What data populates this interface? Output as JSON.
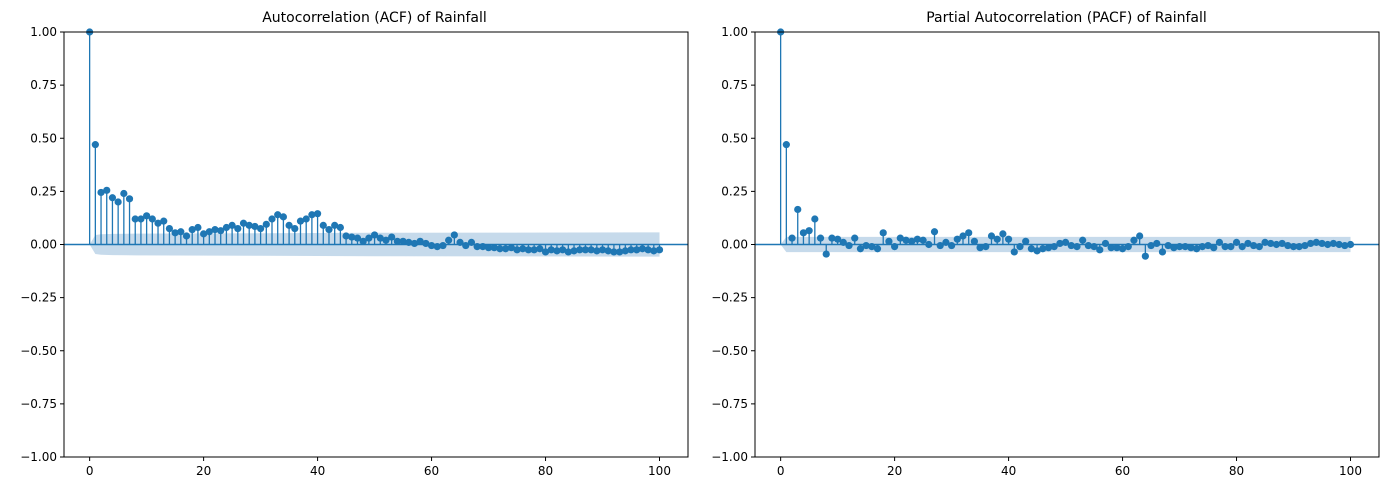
{
  "chart_data": [
    {
      "type": "stem",
      "title": "Autocorrelation (ACF) of Rainfall",
      "xlabel": "",
      "ylabel": "",
      "xlim": [
        -4.5,
        105
      ],
      "ylim": [
        -1.0,
        1.0
      ],
      "x_ticks": [
        0,
        20,
        40,
        60,
        80,
        100
      ],
      "x_tick_labels": [
        "0",
        "20",
        "40",
        "60",
        "80",
        "100"
      ],
      "y_ticks": [
        -1.0,
        -0.75,
        -0.5,
        -0.25,
        0.0,
        0.25,
        0.5,
        0.75,
        1.0
      ],
      "y_tick_labels": [
        "−1.00",
        "−0.75",
        "−0.50",
        "−0.25",
        "0.00",
        "0.25",
        "0.50",
        "0.75",
        "1.00"
      ],
      "grid": false,
      "colors": {
        "marker": "#1f77b4",
        "band": "#aecbe3",
        "zero_line": "#1f77b4"
      },
      "confidence_band": [
        [
          0,
          0
        ],
        [
          1,
          0.045
        ],
        [
          2,
          0.048
        ],
        [
          4,
          0.05
        ],
        [
          8,
          0.051
        ],
        [
          15,
          0.052
        ],
        [
          30,
          0.053
        ],
        [
          50,
          0.055
        ],
        [
          75,
          0.056
        ],
        [
          100,
          0.057
        ]
      ],
      "series": [
        {
          "x": [
            0,
            1,
            2,
            3,
            4,
            5,
            6,
            7,
            8,
            9,
            10,
            11,
            12,
            13,
            14,
            15,
            16,
            17,
            18,
            19,
            20,
            21,
            22,
            23,
            24,
            25,
            26,
            27,
            28,
            29,
            30,
            31,
            32,
            33,
            34,
            35,
            36,
            37,
            38,
            39,
            40,
            41,
            42,
            43,
            44,
            45,
            46,
            47,
            48,
            49,
            50,
            51,
            52,
            53,
            54,
            55,
            56,
            57,
            58,
            59,
            60,
            61,
            62,
            63,
            64,
            65,
            66,
            67,
            68,
            69,
            70,
            71,
            72,
            73,
            74,
            75,
            76,
            77,
            78,
            79,
            80,
            81,
            82,
            83,
            84,
            85,
            86,
            87,
            88,
            89,
            90,
            91,
            92,
            93,
            94,
            95,
            96,
            97,
            98,
            99,
            100
          ],
          "values": [
            1.0,
            0.47,
            0.245,
            0.255,
            0.22,
            0.2,
            0.24,
            0.215,
            0.12,
            0.12,
            0.135,
            0.12,
            0.1,
            0.11,
            0.075,
            0.055,
            0.06,
            0.04,
            0.07,
            0.08,
            0.05,
            0.06,
            0.07,
            0.065,
            0.08,
            0.09,
            0.075,
            0.1,
            0.09,
            0.085,
            0.075,
            0.095,
            0.12,
            0.14,
            0.13,
            0.09,
            0.075,
            0.11,
            0.12,
            0.14,
            0.145,
            0.09,
            0.07,
            0.09,
            0.08,
            0.04,
            0.035,
            0.03,
            0.015,
            0.03,
            0.045,
            0.03,
            0.02,
            0.035,
            0.015,
            0.015,
            0.01,
            0.005,
            0.015,
            0.005,
            -0.005,
            -0.01,
            -0.005,
            0.02,
            0.045,
            0.01,
            -0.005,
            0.01,
            -0.01,
            -0.01,
            -0.015,
            -0.015,
            -0.02,
            -0.02,
            -0.015,
            -0.025,
            -0.02,
            -0.025,
            -0.025,
            -0.02,
            -0.035,
            -0.025,
            -0.03,
            -0.025,
            -0.035,
            -0.03,
            -0.025,
            -0.025,
            -0.025,
            -0.03,
            -0.025,
            -0.03,
            -0.035,
            -0.035,
            -0.03,
            -0.025,
            -0.025,
            -0.02,
            -0.025,
            -0.03,
            -0.025
          ]
        }
      ]
    },
    {
      "type": "stem",
      "title": "Partial Autocorrelation (PACF) of Rainfall",
      "xlabel": "",
      "ylabel": "",
      "xlim": [
        -4.5,
        105
      ],
      "ylim": [
        -1.0,
        1.0
      ],
      "x_ticks": [
        0,
        20,
        40,
        60,
        80,
        100
      ],
      "x_tick_labels": [
        "0",
        "20",
        "40",
        "60",
        "80",
        "100"
      ],
      "y_ticks": [
        -1.0,
        -0.75,
        -0.5,
        -0.25,
        0.0,
        0.25,
        0.5,
        0.75,
        1.0
      ],
      "y_tick_labels": [
        "−1.00",
        "−0.75",
        "−0.50",
        "−0.25",
        "0.00",
        "0.25",
        "0.50",
        "0.75",
        "1.00"
      ],
      "grid": false,
      "colors": {
        "marker": "#1f77b4",
        "band": "#aecbe3",
        "zero_line": "#1f77b4"
      },
      "confidence_band": [
        [
          0,
          0
        ],
        [
          1,
          0.036
        ],
        [
          100,
          0.036
        ]
      ],
      "series": [
        {
          "x": [
            0,
            1,
            2,
            3,
            4,
            5,
            6,
            7,
            8,
            9,
            10,
            11,
            12,
            13,
            14,
            15,
            16,
            17,
            18,
            19,
            20,
            21,
            22,
            23,
            24,
            25,
            26,
            27,
            28,
            29,
            30,
            31,
            32,
            33,
            34,
            35,
            36,
            37,
            38,
            39,
            40,
            41,
            42,
            43,
            44,
            45,
            46,
            47,
            48,
            49,
            50,
            51,
            52,
            53,
            54,
            55,
            56,
            57,
            58,
            59,
            60,
            61,
            62,
            63,
            64,
            65,
            66,
            67,
            68,
            69,
            70,
            71,
            72,
            73,
            74,
            75,
            76,
            77,
            78,
            79,
            80,
            81,
            82,
            83,
            84,
            85,
            86,
            87,
            88,
            89,
            90,
            91,
            92,
            93,
            94,
            95,
            96,
            97,
            98,
            99,
            100
          ],
          "values": [
            1.0,
            0.47,
            0.03,
            0.165,
            0.055,
            0.065,
            0.12,
            0.03,
            -0.045,
            0.03,
            0.025,
            0.01,
            -0.005,
            0.03,
            -0.02,
            -0.005,
            -0.01,
            -0.02,
            0.055,
            0.015,
            -0.01,
            0.03,
            0.02,
            0.015,
            0.025,
            0.02,
            0.0,
            0.06,
            -0.005,
            0.01,
            -0.005,
            0.025,
            0.04,
            0.055,
            0.015,
            -0.015,
            -0.01,
            0.04,
            0.025,
            0.05,
            0.025,
            -0.035,
            -0.01,
            0.015,
            -0.02,
            -0.03,
            -0.02,
            -0.015,
            -0.01,
            0.005,
            0.01,
            -0.005,
            -0.01,
            0.02,
            -0.005,
            -0.01,
            -0.025,
            0.005,
            -0.015,
            -0.015,
            -0.02,
            -0.01,
            0.02,
            0.04,
            -0.055,
            -0.005,
            0.005,
            -0.035,
            -0.005,
            -0.015,
            -0.01,
            -0.01,
            -0.015,
            -0.02,
            -0.01,
            -0.005,
            -0.015,
            0.01,
            -0.01,
            -0.01,
            0.01,
            -0.01,
            0.005,
            -0.005,
            -0.01,
            0.01,
            0.005,
            0.0,
            0.005,
            -0.005,
            -0.01,
            -0.01,
            -0.005,
            0.005,
            0.01,
            0.005,
            0.0,
            0.005,
            0.0,
            -0.005,
            0.0
          ]
        }
      ]
    }
  ]
}
